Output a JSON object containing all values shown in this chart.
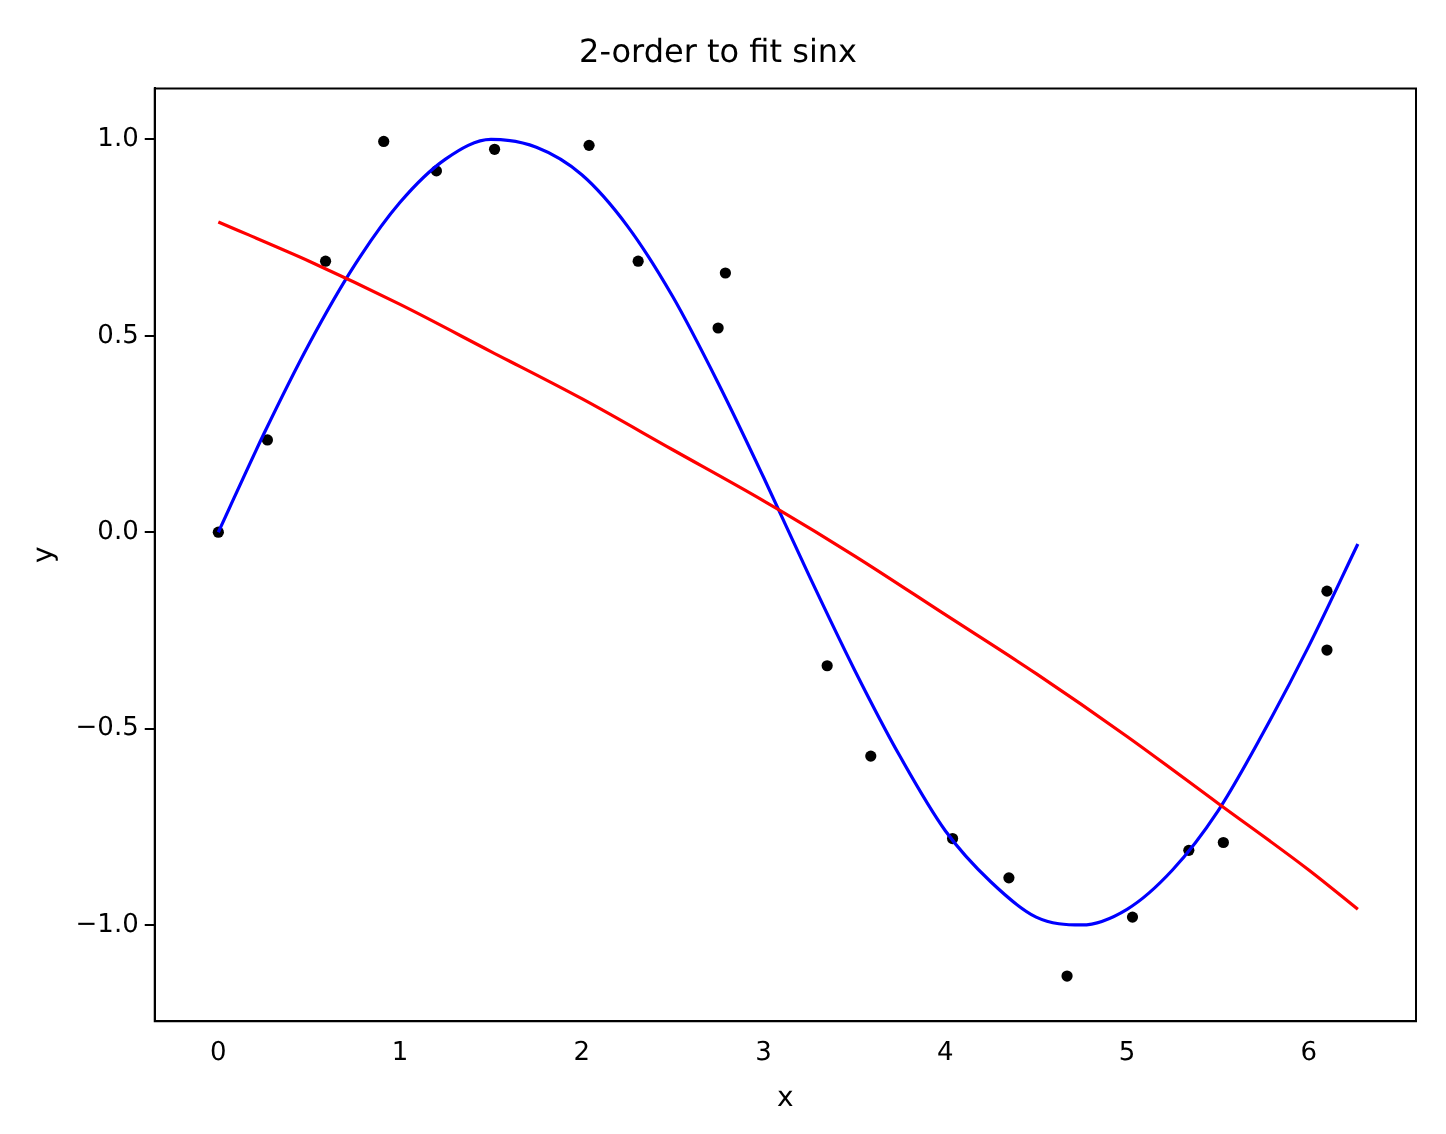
{
  "chart_data": {
    "type": "scatter",
    "title": "2-order to fit sinx",
    "xlabel": "x",
    "ylabel": "y",
    "xlim": [
      -0.35,
      6.59
    ],
    "ylim": [
      -1.245,
      1.13
    ],
    "xticks": [
      0,
      1,
      2,
      3,
      4,
      5,
      6
    ],
    "yticks": [
      {
        "value": -1,
        "label": "−1.0"
      },
      {
        "value": -0.5,
        "label": "−0.5"
      },
      {
        "value": 0,
        "label": "0.0"
      },
      {
        "value": 0.5,
        "label": "0.5"
      },
      {
        "value": 1,
        "label": "1.0"
      }
    ],
    "grid": false,
    "legend": false,
    "series": [
      {
        "marker": "circle",
        "color": "#000000",
        "x": [
          0,
          0.27,
          0.59,
          0.91,
          1.2,
          1.52,
          2.04,
          2.31,
          2.75,
          2.79,
          3.35,
          3.59,
          4.04,
          4.35,
          4.67,
          5.03,
          5.34,
          5.53,
          6.1,
          6.1
        ],
        "values": [
          0,
          0.235,
          0.69,
          0.995,
          0.92,
          0.975,
          0.985,
          0.69,
          0.52,
          0.66,
          -0.34,
          -0.57,
          -0.78,
          -0.88,
          -1.13,
          -0.98,
          -0.81,
          -0.79,
          -0.15,
          -0.3
        ]
      },
      {
        "type": "line",
        "marker": "none",
        "line_style": "solid",
        "color": "#0000ff",
        "x": [
          0,
          0.25,
          0.5,
          0.75,
          1,
          1.25,
          1.5,
          1.75,
          2,
          2.25,
          2.5,
          2.75,
          3,
          3.25,
          3.5,
          3.75,
          4,
          4.25,
          4.5,
          4.75,
          5,
          5.25,
          5.5,
          5.75,
          6,
          6.27
        ],
        "values": [
          0,
          0.25,
          0.48,
          0.68,
          0.84,
          0.95,
          1.0,
          0.98,
          0.91,
          0.78,
          0.6,
          0.38,
          0.14,
          -0.11,
          -0.35,
          -0.57,
          -0.76,
          -0.89,
          -0.98,
          -1.0,
          -0.96,
          -0.86,
          -0.71,
          -0.51,
          -0.29,
          -0.03
        ]
      },
      {
        "type": "line",
        "marker": "none",
        "line_style": "solid",
        "color": "#ff0000",
        "x": [
          0,
          0.5,
          1,
          1.5,
          2,
          2.5,
          3,
          3.5,
          4,
          4.5,
          5,
          5.5,
          6,
          6.27
        ],
        "values": [
          0.79,
          0.69,
          0.58,
          0.46,
          0.34,
          0.21,
          0.08,
          -0.06,
          -0.21,
          -0.36,
          -0.52,
          -0.69,
          -0.86,
          -0.96
        ]
      }
    ]
  }
}
